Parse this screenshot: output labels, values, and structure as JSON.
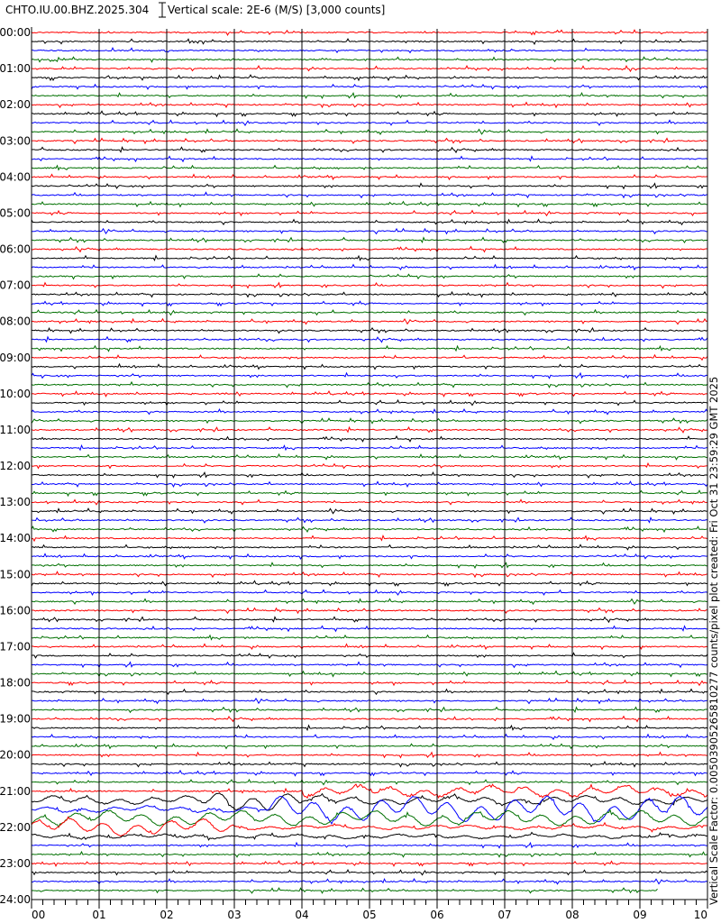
{
  "header": {
    "station": "CHTO.IU.00.BHZ.2025.304",
    "scale": "Vertical scale: 2E-6 (M/S) [3,000 counts]"
  },
  "side_text": "Vertical Scale Factor: 0.00503905265810277 counts/pixel plot created: Fri Oct 31 23:59:29 GMT 2025",
  "chart_data": {
    "type": "line",
    "title": "CHTO.IU.00.BHZ.2025.304",
    "hour_labels": [
      "00:00",
      "01:00",
      "02:00",
      "03:00",
      "04:00",
      "05:00",
      "06:00",
      "07:00",
      "08:00",
      "09:00",
      "10:00",
      "11:00",
      "12:00",
      "13:00",
      "14:00",
      "15:00",
      "16:00",
      "17:00",
      "18:00",
      "19:00",
      "20:00",
      "21:00",
      "22:00",
      "23:00",
      "24:00"
    ],
    "minute_labels": [
      "00",
      "01",
      "02",
      "03",
      "04",
      "05",
      "06",
      "07",
      "08",
      "09",
      "10"
    ],
    "traces_per_hour": 4,
    "trace_colors": [
      "#ff0000",
      "#000000",
      "#0000ff",
      "#007000"
    ],
    "grid": true,
    "event": {
      "start_label": "21:00",
      "note_visible": false
    }
  }
}
